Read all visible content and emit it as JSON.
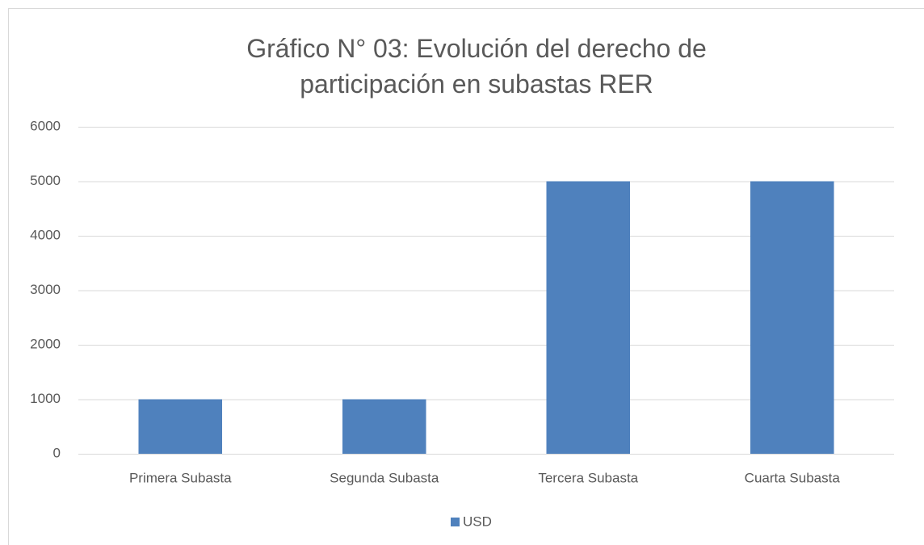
{
  "chart_data": {
    "type": "bar",
    "title": "Gráfico N° 03: Evolución del derecho de participación en subastas RER",
    "categories": [
      "Primera Subasta",
      "Segunda Subasta",
      "Tercera Subasta",
      "Cuarta Subasta"
    ],
    "series": [
      {
        "name": "USD",
        "color": "#4f81bd",
        "values": [
          1000,
          1000,
          5000,
          5000
        ]
      }
    ],
    "ylim": [
      0,
      6000
    ],
    "yticks": [
      0,
      1000,
      2000,
      3000,
      4000,
      5000,
      6000
    ],
    "grid": true,
    "legend": "bottom"
  }
}
